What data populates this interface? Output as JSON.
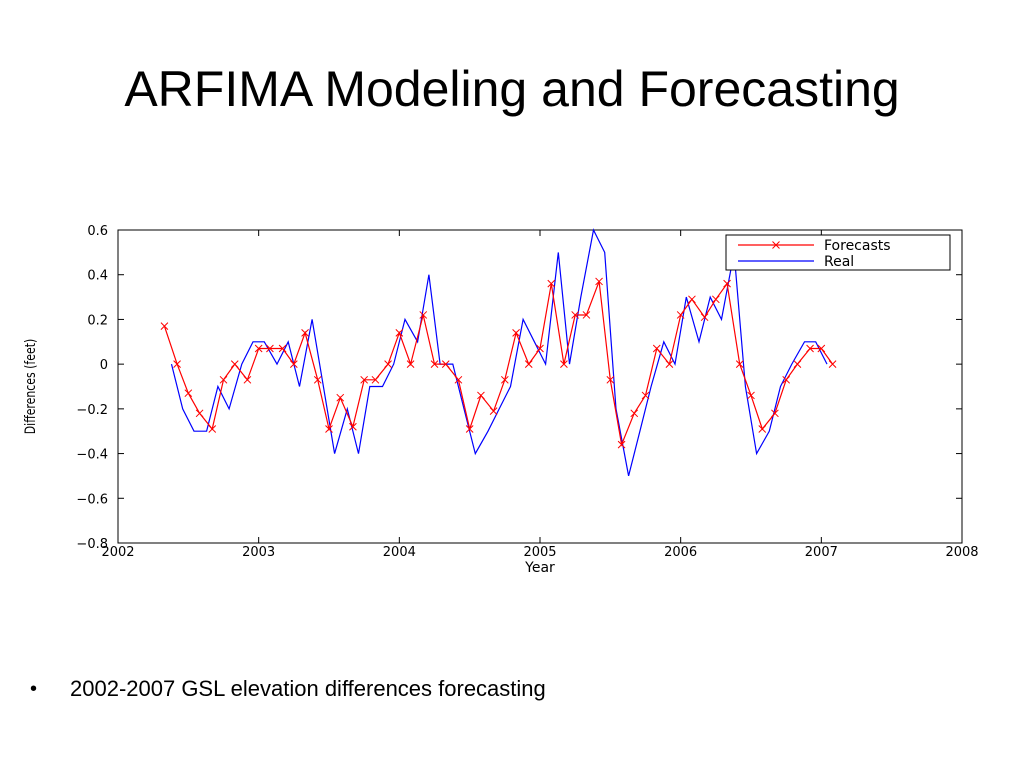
{
  "slide": {
    "title": "ARFIMA Modeling and Forecasting",
    "bullet": "2002-2007 GSL elevation differences forecasting",
    "bullet_symbol": "•"
  },
  "chart_data": {
    "type": "line",
    "title": "",
    "xlabel": "Year",
    "ylabel": "Differences (feet)",
    "xlim": [
      2002,
      2008
    ],
    "ylim": [
      -0.8,
      0.6
    ],
    "xticks": [
      2002,
      2003,
      2004,
      2005,
      2006,
      2007,
      2008
    ],
    "yticks": [
      0.6,
      0.4,
      0.2,
      0,
      -0.2,
      -0.4,
      -0.6,
      -0.8
    ],
    "ytick_labels": [
      "0.6",
      "0.4",
      "0.2",
      "0",
      "−0.2",
      "−0.4",
      "−0.6",
      "−0.8"
    ],
    "grid": false,
    "legend_position": "top-right",
    "series": [
      {
        "name": "Forecasts",
        "color": "#ff0000",
        "marker": "x",
        "x": [
          2002.33,
          2002.42,
          2002.5,
          2002.58,
          2002.67,
          2002.75,
          2002.83,
          2002.92,
          2003.0,
          2003.08,
          2003.17,
          2003.25,
          2003.33,
          2003.42,
          2003.5,
          2003.58,
          2003.67,
          2003.75,
          2003.83,
          2003.92,
          2004.0,
          2004.08,
          2004.17,
          2004.25,
          2004.33,
          2004.42,
          2004.5,
          2004.58,
          2004.67,
          2004.75,
          2004.83,
          2004.92,
          2005.0,
          2005.08,
          2005.17,
          2005.25,
          2005.33,
          2005.42,
          2005.5,
          2005.58,
          2005.67,
          2005.75,
          2005.83,
          2005.92,
          2006.0,
          2006.08,
          2006.17,
          2006.25,
          2006.33,
          2006.42,
          2006.5,
          2006.58,
          2006.67,
          2006.75,
          2006.83,
          2006.92,
          2007.0,
          2007.08
        ],
        "values": [
          0.17,
          0.0,
          -0.13,
          -0.22,
          -0.29,
          -0.07,
          0.0,
          -0.07,
          0.07,
          0.07,
          0.07,
          0.0,
          0.14,
          -0.07,
          -0.29,
          -0.15,
          -0.28,
          -0.07,
          -0.07,
          0.0,
          0.14,
          0.0,
          0.22,
          0.0,
          0.0,
          -0.07,
          -0.29,
          -0.14,
          -0.21,
          -0.07,
          0.14,
          0.0,
          0.07,
          0.36,
          0.0,
          0.22,
          0.22,
          0.37,
          -0.07,
          -0.36,
          -0.22,
          -0.14,
          0.07,
          0.0,
          0.22,
          0.29,
          0.21,
          0.29,
          0.36,
          0.0,
          -0.14,
          -0.29,
          -0.22,
          -0.07,
          0.0,
          0.07,
          0.07,
          0.0
        ]
      },
      {
        "name": "Real",
        "color": "#0000ff",
        "marker": "",
        "x": [
          2002.38,
          2002.46,
          2002.54,
          2002.63,
          2002.71,
          2002.79,
          2002.88,
          2002.96,
          2003.04,
          2003.13,
          2003.21,
          2003.29,
          2003.38,
          2003.46,
          2003.54,
          2003.63,
          2003.71,
          2003.79,
          2003.88,
          2003.96,
          2004.04,
          2004.13,
          2004.21,
          2004.29,
          2004.38,
          2004.46,
          2004.54,
          2004.63,
          2004.71,
          2004.79,
          2004.88,
          2004.96,
          2005.04,
          2005.13,
          2005.21,
          2005.29,
          2005.38,
          2005.46,
          2005.54,
          2005.63,
          2005.71,
          2005.79,
          2005.88,
          2005.96,
          2006.04,
          2006.13,
          2006.21,
          2006.29,
          2006.38,
          2006.46,
          2006.54,
          2006.63,
          2006.71,
          2006.79,
          2006.88,
          2006.96,
          2007.04
        ],
        "values": [
          0.0,
          -0.2,
          -0.3,
          -0.3,
          -0.1,
          -0.2,
          0.0,
          0.1,
          0.1,
          0.0,
          0.1,
          -0.1,
          0.2,
          -0.1,
          -0.4,
          -0.2,
          -0.4,
          -0.1,
          -0.1,
          0.0,
          0.2,
          0.1,
          0.4,
          0.0,
          0.0,
          -0.2,
          -0.4,
          -0.3,
          -0.2,
          -0.1,
          0.2,
          0.1,
          0.0,
          0.5,
          0.0,
          0.3,
          0.6,
          0.5,
          -0.2,
          -0.5,
          -0.3,
          -0.1,
          0.1,
          0.0,
          0.3,
          0.1,
          0.3,
          0.2,
          0.5,
          -0.1,
          -0.4,
          -0.3,
          -0.1,
          0.0,
          0.1,
          0.1,
          0.0
        ]
      }
    ]
  }
}
